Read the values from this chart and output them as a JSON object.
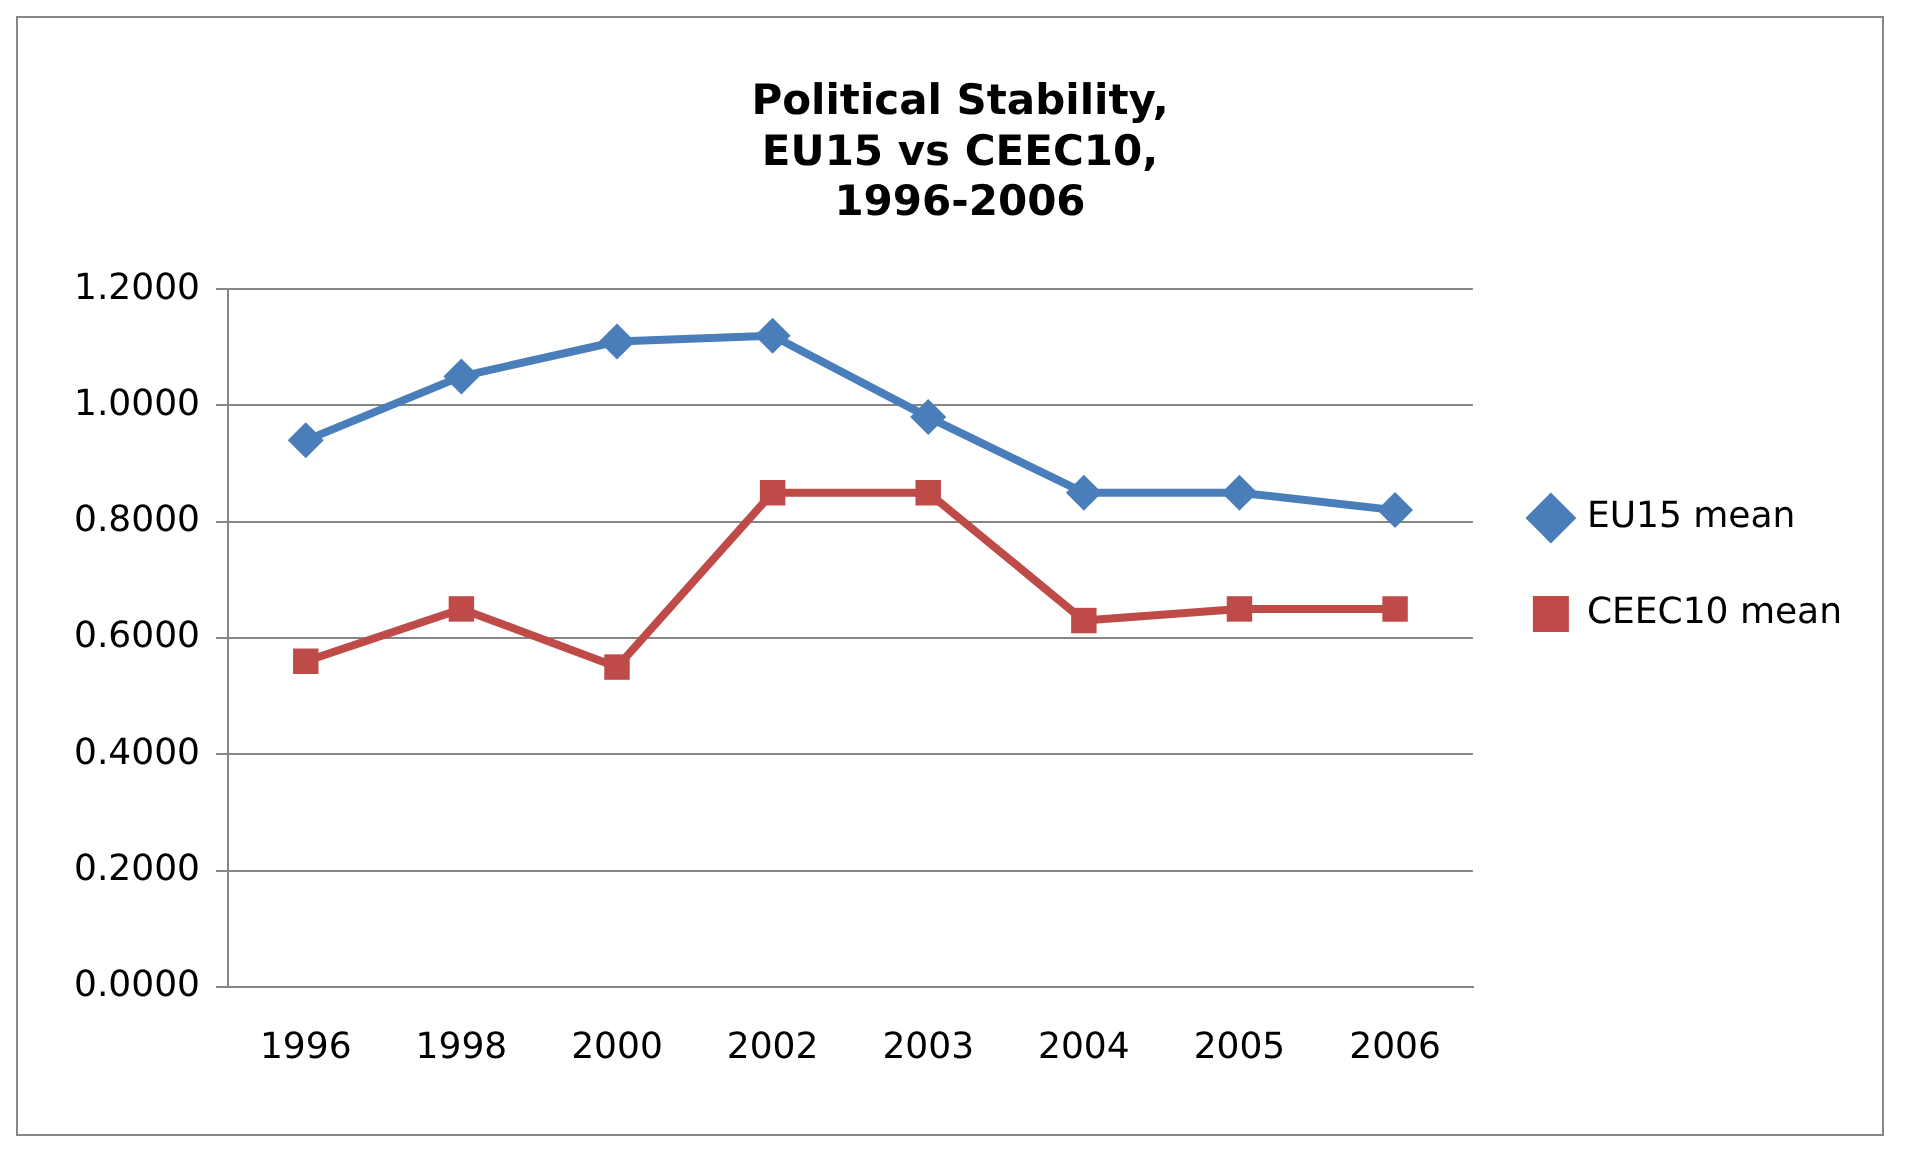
{
  "chart_data": {
    "type": "line",
    "title": "Political Stability,\nEU15 vs CEEC10,\n1996-2006",
    "categories": [
      "1996",
      "1998",
      "2000",
      "2002",
      "2003",
      "2004",
      "2005",
      "2006"
    ],
    "series": [
      {
        "name": "EU15 mean",
        "color": "#4a7ebb",
        "marker": "diamond",
        "values": [
          0.94,
          1.05,
          1.11,
          1.12,
          0.98,
          0.85,
          0.85,
          0.82
        ]
      },
      {
        "name": "CEEC10 mean",
        "color": "#be4b48",
        "marker": "square",
        "values": [
          0.56,
          0.65,
          0.55,
          0.85,
          0.85,
          0.63,
          0.65,
          0.65
        ]
      }
    ],
    "ylim": [
      0,
      1.2
    ],
    "yticks": [
      {
        "value": 0,
        "label": "0.0000"
      },
      {
        "value": 0.2,
        "label": "0.2000"
      },
      {
        "value": 0.4,
        "label": "0.4000"
      },
      {
        "value": 0.6,
        "label": "0.6000"
      },
      {
        "value": 0.8,
        "label": "0.8000"
      },
      {
        "value": 1,
        "label": "1.0000"
      },
      {
        "value": 1.2,
        "label": "1.2000"
      }
    ],
    "grid": "y",
    "legend": "right",
    "line_style": "solid"
  }
}
